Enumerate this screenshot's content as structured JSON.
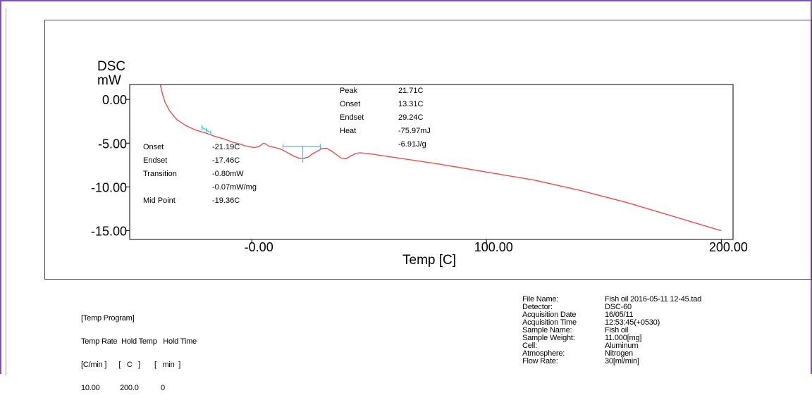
{
  "chart_data": {
    "type": "line",
    "ylabel_line1": "DSC",
    "ylabel_line2": "mW",
    "xlabel": "Temp  [C]",
    "xlim": [
      -52,
      205
    ],
    "ylim": [
      -16,
      1.7
    ],
    "x_ticks": [
      0,
      100,
      200
    ],
    "x_tick_labels": [
      "-0.00",
      "100.00",
      "200.00"
    ],
    "y_ticks": [
      0,
      -5,
      -10,
      -15
    ],
    "y_tick_labels": [
      "0.00",
      "-5.00",
      "-10.00",
      "-15.00"
    ],
    "series_color": "#e8504e",
    "baseline_color": "#35c8d8",
    "series": [
      {
        "x": [
          -39,
          -38,
          -37,
          -35,
          -32,
          -28,
          -24,
          -20,
          -16,
          -12,
          -8,
          -5,
          -3,
          -1,
          1,
          3,
          4,
          5,
          6,
          7,
          8,
          10,
          12,
          14,
          16,
          18,
          20,
          21.7,
          24,
          26,
          28,
          30,
          32,
          34,
          36,
          38,
          40,
          42,
          44,
          46,
          50,
          60,
          80,
          100,
          120,
          140,
          160,
          180,
          200
        ],
        "y": [
          1.7,
          0.6,
          -0.3,
          -1.3,
          -2.3,
          -3.0,
          -3.5,
          -3.8,
          -4.2,
          -4.5,
          -4.9,
          -5.1,
          -5.3,
          -5.4,
          -5.5,
          -5.4,
          -5.2,
          -5.0,
          -5.1,
          -5.3,
          -5.4,
          -5.5,
          -5.65,
          -5.9,
          -6.2,
          -6.5,
          -6.7,
          -6.75,
          -6.6,
          -6.2,
          -5.9,
          -5.6,
          -5.6,
          -5.9,
          -6.3,
          -6.7,
          -6.8,
          -6.5,
          -6.2,
          -6.1,
          -6.2,
          -6.6,
          -7.4,
          -8.3,
          -9.2,
          -10.4,
          -11.8,
          -13.4,
          -15.0
        ]
      }
    ],
    "baseline_segments": [
      {
        "x": [
          -21.2,
          -17.5
        ],
        "y": [
          -3.2,
          -3.8
        ]
      },
      {
        "x": [
          13.3,
          29.2
        ],
        "y": [
          -5.35,
          -5.35
        ]
      }
    ],
    "annotations_left": [
      {
        "label": "Onset",
        "value": "-21.19C"
      },
      {
        "label": "Endset",
        "value": "-17.46C"
      },
      {
        "label": "Transition",
        "value": "-0.80mW"
      },
      {
        "label": "",
        "value": "-0.07mW/mg"
      },
      {
        "label": "Mid Point",
        "value": "-19.36C"
      }
    ],
    "annotations_right": [
      {
        "label": "Peak",
        "value": "21.71C"
      },
      {
        "label": "Onset",
        "value": "13.31C"
      },
      {
        "label": "Endset",
        "value": "29.24C"
      },
      {
        "label": "Heat",
        "value": "-75.97mJ"
      },
      {
        "label": "",
        "value": "-6.91J/g"
      }
    ]
  },
  "temp_program": {
    "header": "[Temp Program]",
    "row1": "Temp Rate  Hold Temp   Hold Time",
    "row2": "[C/min ]      [   C   ]       [   min  ]",
    "row3": "10.00          200.0           0"
  },
  "file_info": [
    {
      "label": "File Name:",
      "value": "Fish oil 2016-05-11 12-45.tad"
    },
    {
      "label": "Detector:",
      "value": "DSC-60"
    },
    {
      "label": "Acquisition Date",
      "value": "16/05/11"
    },
    {
      "label": "Acquisition Time",
      "value": "12:53:45(+0530)"
    },
    {
      "label": "Sample Name:",
      "value": "Fish oil"
    },
    {
      "label": "Sample Weight:",
      "value": "11.000[mg]"
    },
    {
      "label": "Cell:",
      "value": "Aluminum"
    },
    {
      "label": "Atmosphere:",
      "value": "Nitrogen"
    },
    {
      "label": "Flow Rate:",
      "value": "30[ml/min]"
    }
  ]
}
